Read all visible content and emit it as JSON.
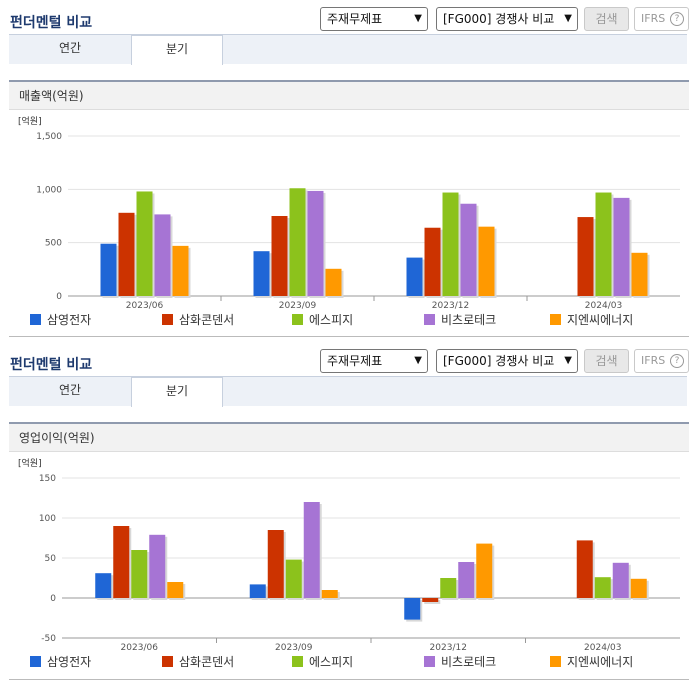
{
  "colors": {
    "title": "#1e3a6e",
    "series": [
      "#1f66d6",
      "#cc3300",
      "#8cc21c",
      "#a674d4",
      "#ff9900"
    ]
  },
  "controls": {
    "title": "펀더멘털 비교",
    "report_select": "주재무제표",
    "compare_select": "[FG000] 경쟁사 비교",
    "search_label": "검색",
    "ifrs_label": "IFRS",
    "help_icon": "?",
    "tab_annual": "연간",
    "tab_quarter": "분기"
  },
  "charts": [
    {
      "subheader": "매출액(억원)",
      "unit_label": "[억원]"
    },
    {
      "subheader": "영업이익(억원)",
      "unit_label": "[억원]"
    }
  ],
  "chart_data": [
    {
      "type": "bar",
      "title": "매출액(억원)",
      "ylabel": "[억원]",
      "categories": [
        "2023/06",
        "2023/09",
        "2023/12",
        "2024/03"
      ],
      "ylim": [
        0,
        1500
      ],
      "yticks": [
        0,
        500,
        1000,
        1500
      ],
      "ytick_labels": [
        "0",
        "500",
        "1,000",
        "1,500"
      ],
      "grid": true,
      "legend": "bottom",
      "series": [
        {
          "name": "삼영전자",
          "values": [
            490,
            420,
            360,
            null
          ]
        },
        {
          "name": "삼화콘덴서",
          "values": [
            780,
            750,
            640,
            740
          ]
        },
        {
          "name": "에스피지",
          "values": [
            980,
            1010,
            970,
            970
          ]
        },
        {
          "name": "비츠로테크",
          "values": [
            765,
            985,
            865,
            920
          ]
        },
        {
          "name": "지엔씨에너지",
          "values": [
            470,
            255,
            650,
            405
          ]
        }
      ]
    },
    {
      "type": "bar",
      "title": "영업이익(억원)",
      "ylabel": "[억원]",
      "categories": [
        "2023/06",
        "2023/09",
        "2023/12",
        "2024/03"
      ],
      "ylim": [
        -50,
        150
      ],
      "yticks": [
        -50,
        0,
        50,
        100,
        150
      ],
      "ytick_labels": [
        "-50",
        "0",
        "50",
        "100",
        "150"
      ],
      "grid": true,
      "legend": "bottom",
      "series": [
        {
          "name": "삼영전자",
          "values": [
            31,
            17,
            -27,
            null
          ]
        },
        {
          "name": "삼화콘덴서",
          "values": [
            90,
            85,
            -5,
            72
          ]
        },
        {
          "name": "에스피지",
          "values": [
            60,
            48,
            25,
            26
          ]
        },
        {
          "name": "비츠로테크",
          "values": [
            79,
            120,
            45,
            44
          ]
        },
        {
          "name": "지엔씨에너지",
          "values": [
            20,
            10,
            68,
            24
          ]
        }
      ]
    }
  ]
}
